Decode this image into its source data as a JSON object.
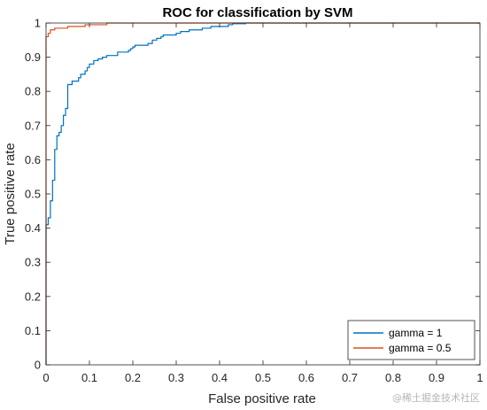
{
  "chart_data": {
    "type": "line",
    "title": "ROC for classification by SVM",
    "xlabel": "False positive rate",
    "ylabel": "True positive rate",
    "xlim": [
      0,
      1
    ],
    "ylim": [
      0,
      1
    ],
    "xticks": [
      "0",
      "0.1",
      "0.2",
      "0.3",
      "0.4",
      "0.5",
      "0.6",
      "0.7",
      "0.8",
      "0.9",
      "1"
    ],
    "yticks": [
      "0",
      "0.1",
      "0.2",
      "0.3",
      "0.4",
      "0.5",
      "0.6",
      "0.7",
      "0.8",
      "0.9",
      "1"
    ],
    "grid": false,
    "legend_position": "bottom-right",
    "series": [
      {
        "name": "gamma = 1",
        "color": "#0072BD",
        "x": [
          0,
          0,
          0.005,
          0.005,
          0.01,
          0.01,
          0.015,
          0.015,
          0.02,
          0.02,
          0.025,
          0.025,
          0.03,
          0.03,
          0.035,
          0.035,
          0.04,
          0.04,
          0.045,
          0.045,
          0.05,
          0.05,
          0.06,
          0.06,
          0.075,
          0.075,
          0.08,
          0.08,
          0.09,
          0.09,
          0.095,
          0.095,
          0.1,
          0.1,
          0.11,
          0.11,
          0.12,
          0.12,
          0.13,
          0.13,
          0.14,
          0.14,
          0.165,
          0.165,
          0.19,
          0.19,
          0.195,
          0.195,
          0.2,
          0.2,
          0.205,
          0.205,
          0.235,
          0.235,
          0.245,
          0.245,
          0.255,
          0.255,
          0.265,
          0.265,
          0.27,
          0.27,
          0.3,
          0.3,
          0.31,
          0.31,
          0.33,
          0.33,
          0.36,
          0.36,
          0.38,
          0.38,
          0.42,
          0.42,
          0.43,
          0.43,
          0.46,
          0.46,
          0.47,
          1
        ],
        "y": [
          0,
          0.41,
          0.41,
          0.43,
          0.43,
          0.48,
          0.48,
          0.54,
          0.54,
          0.63,
          0.63,
          0.67,
          0.67,
          0.68,
          0.68,
          0.7,
          0.7,
          0.73,
          0.73,
          0.75,
          0.75,
          0.82,
          0.82,
          0.83,
          0.83,
          0.84,
          0.84,
          0.85,
          0.85,
          0.86,
          0.86,
          0.87,
          0.87,
          0.88,
          0.88,
          0.89,
          0.89,
          0.895,
          0.895,
          0.9,
          0.9,
          0.905,
          0.905,
          0.915,
          0.915,
          0.92,
          0.92,
          0.925,
          0.925,
          0.93,
          0.93,
          0.935,
          0.935,
          0.94,
          0.94,
          0.95,
          0.95,
          0.955,
          0.955,
          0.96,
          0.96,
          0.965,
          0.965,
          0.97,
          0.97,
          0.975,
          0.975,
          0.98,
          0.98,
          0.985,
          0.985,
          0.99,
          0.99,
          0.995,
          0.995,
          0.998,
          0.998,
          1,
          1,
          1
        ]
      },
      {
        "name": "gamma = 0.5",
        "color": "#D95319",
        "x": [
          0,
          0,
          0.005,
          0.005,
          0.01,
          0.01,
          0.02,
          0.02,
          0.05,
          0.05,
          0.09,
          0.09,
          0.14,
          0.14,
          1
        ],
        "y": [
          0,
          0.96,
          0.96,
          0.97,
          0.97,
          0.98,
          0.98,
          0.985,
          0.985,
          0.99,
          0.99,
          0.995,
          0.995,
          1,
          1
        ]
      }
    ]
  },
  "watermark": "@稀土掘金技术社区"
}
